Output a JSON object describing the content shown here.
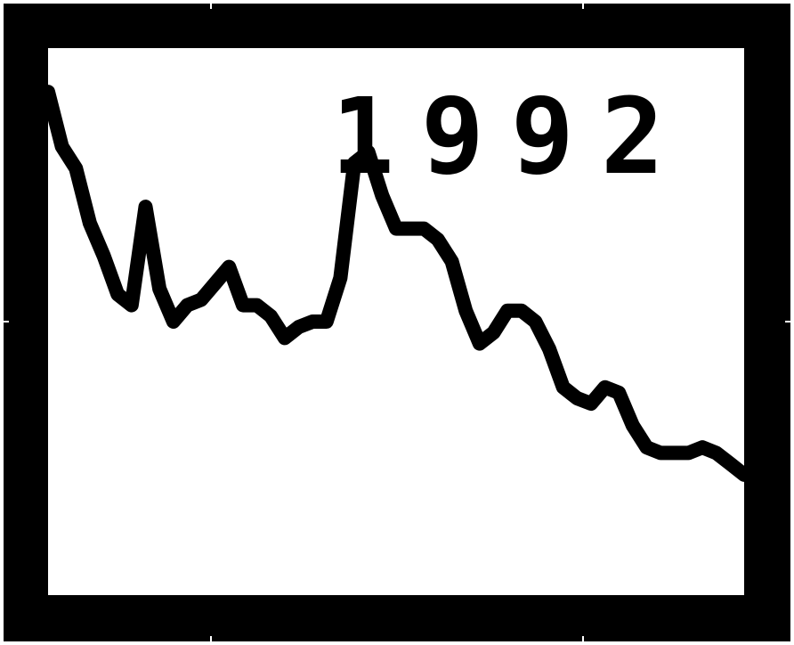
{
  "chart_data": {
    "type": "line",
    "title": "1992",
    "xlabel": "",
    "ylabel": "",
    "grid": false,
    "xlim": [
      0,
      100
    ],
    "ylim": [
      0,
      100
    ],
    "x": [
      0,
      2,
      4,
      6,
      8,
      10,
      12,
      14,
      16,
      18,
      20,
      22,
      24,
      26,
      28,
      30,
      32,
      34,
      36,
      38,
      40,
      42,
      44,
      46,
      48,
      50,
      52,
      54,
      56,
      58,
      60,
      62,
      64,
      66,
      68,
      70,
      72,
      74,
      76,
      78,
      80,
      82,
      84,
      86,
      88,
      90,
      92,
      94,
      96,
      98,
      100
    ],
    "series": [
      {
        "color": "#000000",
        "values": [
          92,
          82,
          78,
          68,
          62,
          55,
          53,
          71,
          56,
          50,
          53,
          54,
          57,
          60,
          53,
          53,
          51,
          47,
          49,
          50,
          50,
          58,
          79,
          81,
          73,
          67,
          67,
          67,
          65,
          61,
          52,
          46,
          48,
          52,
          52,
          50,
          45,
          38,
          36,
          35,
          38,
          37,
          31,
          27,
          26,
          26,
          26,
          27,
          26,
          24,
          22
        ]
      }
    ]
  }
}
